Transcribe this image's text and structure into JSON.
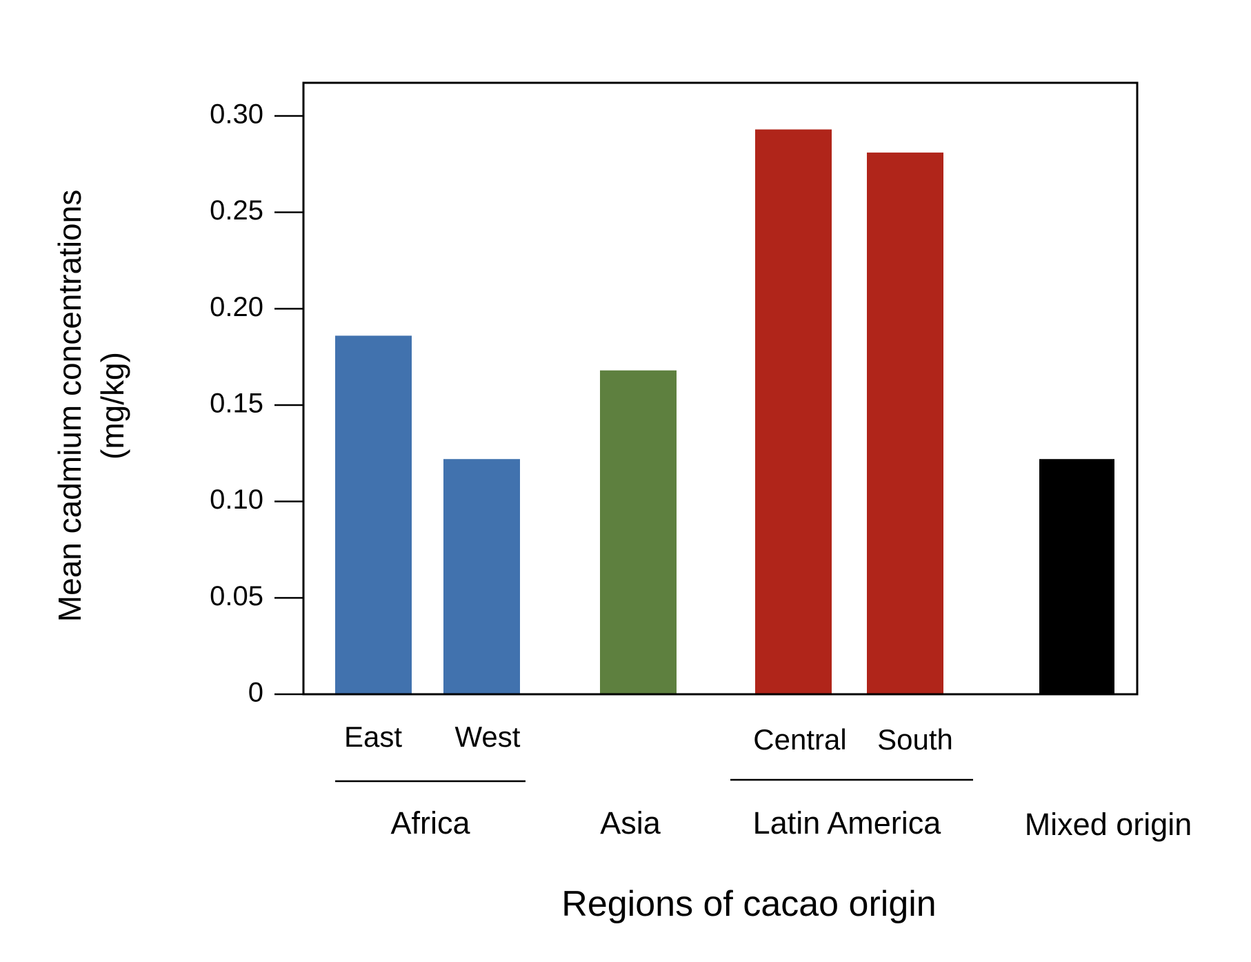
{
  "chart_data": {
    "type": "bar",
    "xlabel": "Regions of cacao origin",
    "ylabel_lines": [
      "Mean cadmium concentrations",
      "(mg/kg)"
    ],
    "ylim": [
      0,
      0.32
    ],
    "yticks": [
      {
        "value": 0,
        "label": "0"
      },
      {
        "value": 0.05,
        "label": "0.05"
      },
      {
        "value": 0.1,
        "label": "0.10"
      },
      {
        "value": 0.15,
        "label": "0.15"
      },
      {
        "value": 0.2,
        "label": "0.20"
      },
      {
        "value": 0.25,
        "label": "0.25"
      },
      {
        "value": 0.3,
        "label": "0.30"
      }
    ],
    "grid": false,
    "legend": "none",
    "bars": [
      {
        "label": "East",
        "group": "Africa",
        "value": 0.186,
        "color": "#4172ae"
      },
      {
        "label": "West",
        "group": "Africa",
        "value": 0.122,
        "color": "#4172ae"
      },
      {
        "label": "",
        "group": "Asia",
        "value": 0.168,
        "color": "#5e803f"
      },
      {
        "label": "Central",
        "group": "Latin America",
        "value": 0.293,
        "color": "#b0251a"
      },
      {
        "label": "South",
        "group": "Latin America",
        "value": 0.281,
        "color": "#b0251a"
      },
      {
        "label": "",
        "group": "Mixed origin",
        "value": 0.122,
        "color": "#000000"
      }
    ],
    "groups": [
      "Africa",
      "Asia",
      "Latin America",
      "Mixed origin"
    ]
  }
}
